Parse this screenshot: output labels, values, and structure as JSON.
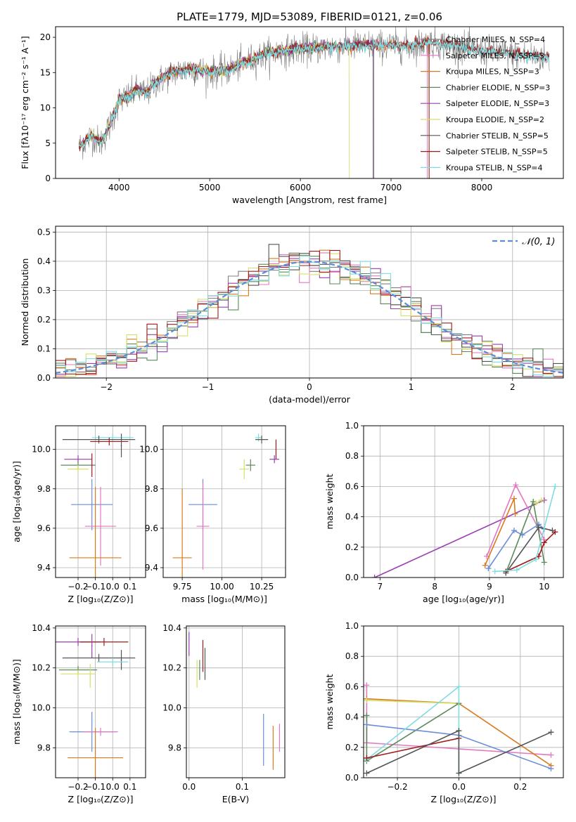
{
  "title": "PLATE=1779, MJD=53089, FIBERID=0121, z=0.06",
  "colors": {
    "chabrier_miles": "#7f7f7f",
    "salpeter_miles": "#e377c2",
    "kroupa_miles": "#d97b1e",
    "chabrier_elodie": "#5a8a5a",
    "salpeter_elodie": "#9a3fb0",
    "kroupa_elodie": "#d4e06a",
    "chabrier_stelib": "#555555",
    "salpeter_stelib": "#a01c1c",
    "kroupa_stelib": "#7fdde0",
    "gaussian": "#5b8dd6",
    "single": "#6a8ed8"
  },
  "chart_data": [
    {
      "id": "spectrum",
      "type": "line",
      "xlabel": "wavelength [Angstrom, rest frame]",
      "ylabel": "Flux [fλ10⁻¹⁷ erg cm⁻² s⁻¹ A⁻¹]",
      "xlim": [
        3300,
        8900
      ],
      "ylim": [
        0,
        21.5
      ],
      "xticks": [
        4000,
        5000,
        6000,
        7000,
        8000
      ],
      "yticks": [
        0,
        5,
        10,
        15,
        20
      ],
      "grid": false,
      "legend_placement": "top-right",
      "legend": [
        {
          "label": "Chabrier MILES, N_SSP=4",
          "color_key": "chabrier_miles"
        },
        {
          "label": "Salpeter MILES, N_SSP=3",
          "color_key": "salpeter_miles"
        },
        {
          "label": "Kroupa MILES, N_SSP=3",
          "color_key": "kroupa_miles"
        },
        {
          "label": "Chabrier ELODIE, N_SSP=3",
          "color_key": "chabrier_elodie"
        },
        {
          "label": "Salpeter ELODIE, N_SSP=3",
          "color_key": "salpeter_elodie"
        },
        {
          "label": "Kroupa ELODIE, N_SSP=2",
          "color_key": "kroupa_elodie"
        },
        {
          "label": "Chabrier STELIB, N_SSP=5",
          "color_key": "chabrier_stelib"
        },
        {
          "label": "Salpeter STELIB, N_SSP=5",
          "color_key": "salpeter_stelib"
        },
        {
          "label": "Kroupa STELIB, N_SSP=4",
          "color_key": "kroupa_stelib"
        }
      ],
      "continuum": [
        [
          3560,
          4.5
        ],
        [
          3700,
          6.0
        ],
        [
          3800,
          5.0
        ],
        [
          3900,
          7.5
        ],
        [
          4000,
          11.0
        ],
        [
          4100,
          11.5
        ],
        [
          4200,
          12.5
        ],
        [
          4300,
          12.0
        ],
        [
          4400,
          13.5
        ],
        [
          4600,
          15.0
        ],
        [
          4800,
          15.5
        ],
        [
          5000,
          15.0
        ],
        [
          5200,
          15.3
        ],
        [
          5400,
          16.5
        ],
        [
          5600,
          17.5
        ],
        [
          5800,
          18.0
        ],
        [
          6000,
          18.3
        ],
        [
          6200,
          18.5
        ],
        [
          6400,
          18.6
        ],
        [
          6600,
          18.8
        ],
        [
          6800,
          18.8
        ],
        [
          7000,
          18.8
        ],
        [
          7200,
          18.7
        ],
        [
          7400,
          19.2
        ],
        [
          7600,
          19.0
        ],
        [
          7800,
          18.5
        ],
        [
          8000,
          18.0
        ],
        [
          8200,
          17.8
        ],
        [
          8400,
          17.5
        ],
        [
          8600,
          17.3
        ],
        [
          8750,
          17.0
        ]
      ]
    },
    {
      "id": "residuals",
      "type": "line",
      "xlabel": "(data-model)/error",
      "ylabel": "Normed distribution",
      "xlim": [
        -2.5,
        2.5
      ],
      "ylim": [
        0,
        0.52
      ],
      "xticks": [
        -2,
        -1,
        0,
        1,
        2
      ],
      "yticks": [
        0.0,
        0.1,
        0.2,
        0.3,
        0.4,
        0.5
      ],
      "grid": true,
      "legend_placement": "top-right",
      "legend_label": "𝒩(0, 1)"
    },
    {
      "id": "z_age",
      "type": "scatter",
      "xlabel": "Z [log₁₀(Z/Z⊙)]",
      "ylabel": "age  [log₁₀(age/yr)]",
      "xlim": [
        -0.33,
        0.19
      ],
      "ylim": [
        9.35,
        10.12
      ],
      "xticks": [
        -0.2,
        -0.1,
        0.0,
        0.1
      ],
      "ytick_values": [
        9.4,
        9.6,
        9.8,
        10.0
      ],
      "grid": true,
      "points": [
        {
          "x": 0.0,
          "y": 10.06,
          "xerr": 0.12,
          "yerr": 0.02,
          "color_key": "kroupa_stelib"
        },
        {
          "x": -0.08,
          "y": 10.05,
          "xerr": 0.21,
          "yerr": 0.02,
          "color_key": "chabrier_stelib"
        },
        {
          "x": -0.02,
          "y": 10.04,
          "xerr": 0.11,
          "yerr": 0.02,
          "color_key": "salpeter_stelib"
        },
        {
          "x": 0.05,
          "y": 10.02,
          "xerr": 0.003,
          "yerr": 0.06,
          "color_key": "chabrier_stelib"
        },
        {
          "x": -0.2,
          "y": 9.95,
          "xerr": 0.08,
          "yerr": 0.02,
          "color_key": "salpeter_elodie"
        },
        {
          "x": -0.2,
          "y": 9.92,
          "xerr": 0.1,
          "yerr": 0.02,
          "color_key": "chabrier_elodie"
        },
        {
          "x": -0.12,
          "y": 9.92,
          "xerr": 0.003,
          "yerr": 0.06,
          "color_key": "salpeter_stelib"
        },
        {
          "x": -0.2,
          "y": 9.9,
          "xerr": 0.06,
          "yerr": 0.02,
          "color_key": "kroupa_elodie"
        },
        {
          "x": -0.12,
          "y": 9.72,
          "xerr": 0.12,
          "yerr": 0.13,
          "color_key": "single"
        },
        {
          "x": -0.07,
          "y": 9.61,
          "xerr": 0.09,
          "yerr": 0.2,
          "color_key": "salpeter_miles"
        },
        {
          "x": -0.1,
          "y": 9.45,
          "xerr": 0.15,
          "yerr": 0.36,
          "color_key": "kroupa_miles"
        }
      ]
    },
    {
      "id": "mass_age",
      "type": "scatter",
      "xlabel": "mass [log₁₀(M/M⊙)]",
      "ylabel": "",
      "xlim": [
        9.63,
        10.4
      ],
      "ylim": [
        9.35,
        10.12
      ],
      "xticks": [
        9.75,
        10.0,
        10.25
      ],
      "ytick_values": [
        9.4,
        9.6,
        9.8,
        10.0
      ],
      "grid": true,
      "points": [
        {
          "x": 10.23,
          "y": 10.06,
          "xerr": 0.02,
          "yerr": 0.02,
          "color_key": "kroupa_stelib"
        },
        {
          "x": 10.25,
          "y": 10.05,
          "xerr": 0.04,
          "yerr": 0.02,
          "color_key": "chabrier_stelib"
        },
        {
          "x": 10.34,
          "y": 10.0,
          "xerr": 0.003,
          "yerr": 0.05,
          "color_key": "salpeter_stelib"
        },
        {
          "x": 10.33,
          "y": 9.95,
          "xerr": 0.03,
          "yerr": 0.02,
          "color_key": "salpeter_elodie"
        },
        {
          "x": 10.18,
          "y": 9.92,
          "xerr": 0.03,
          "yerr": 0.03,
          "color_key": "chabrier_elodie"
        },
        {
          "x": 10.14,
          "y": 9.9,
          "xerr": 0.03,
          "yerr": 0.05,
          "color_key": "kroupa_elodie"
        },
        {
          "x": 9.88,
          "y": 9.72,
          "xerr": 0.09,
          "yerr": 0.13,
          "color_key": "single"
        },
        {
          "x": 9.88,
          "y": 9.61,
          "xerr": 0.04,
          "yerr": 0.22,
          "color_key": "salpeter_miles"
        },
        {
          "x": 9.75,
          "y": 9.45,
          "xerr": 0.06,
          "yerr": 0.35,
          "color_key": "kroupa_miles"
        }
      ]
    },
    {
      "id": "age_weight",
      "type": "line",
      "xlabel": "age  [log₁₀(age/yr)]",
      "ylabel": "mass weight",
      "xlim": [
        6.7,
        10.35
      ],
      "ylim": [
        0,
        1.0
      ],
      "xticks": [
        7,
        8,
        9,
        10
      ],
      "yticks": [
        0.0,
        0.2,
        0.4,
        0.6,
        0.8,
        1.0
      ],
      "grid": true,
      "series": [
        {
          "color_key": "salpeter_elodie",
          "points": [
            [
              6.9,
              0.0
            ],
            [
              10.0,
              0.51
            ]
          ]
        },
        {
          "color_key": "salpeter_miles",
          "points": [
            [
              8.95,
              0.14
            ],
            [
              9.48,
              0.61
            ],
            [
              10.0,
              0.25
            ]
          ]
        },
        {
          "color_key": "kroupa_miles",
          "points": [
            [
              8.92,
              0.08
            ],
            [
              9.45,
              0.52
            ],
            [
              9.47,
              0.42
            ]
          ]
        },
        {
          "color_key": "single",
          "points": [
            [
              8.98,
              0.06
            ],
            [
              9.45,
              0.31
            ],
            [
              9.6,
              0.28
            ],
            [
              9.9,
              0.35
            ],
            [
              10.0,
              0.32
            ]
          ]
        },
        {
          "color_key": "chabrier_elodie",
          "points": [
            [
              9.3,
              0.03
            ],
            [
              9.8,
              0.5
            ],
            [
              10.0,
              0.1
            ]
          ]
        },
        {
          "color_key": "salpeter_stelib",
          "points": [
            [
              9.3,
              0.04
            ],
            [
              9.9,
              0.14
            ],
            [
              10.0,
              0.23
            ],
            [
              10.2,
              0.3
            ]
          ]
        },
        {
          "color_key": "chabrier_stelib",
          "points": [
            [
              9.3,
              0.03
            ],
            [
              9.9,
              0.33
            ],
            [
              10.15,
              0.31
            ]
          ]
        },
        {
          "color_key": "kroupa_stelib",
          "points": [
            [
              9.1,
              0.04
            ],
            [
              9.5,
              0.05
            ],
            [
              9.85,
              0.12
            ],
            [
              10.2,
              0.6
            ]
          ]
        },
        {
          "color_key": "kroupa_elodie",
          "points": [
            [
              9.85,
              0.49
            ],
            [
              9.95,
              0.51
            ]
          ]
        }
      ]
    },
    {
      "id": "z_mass",
      "type": "scatter",
      "xlabel": "Z [log₁₀(Z/Z⊙)]",
      "ylabel": "mass [log₁₀(M/M⊙)]",
      "xlim": [
        -0.33,
        0.19
      ],
      "ylim": [
        9.65,
        10.41
      ],
      "xticks": [
        -0.2,
        -0.1,
        0.0,
        0.1
      ],
      "ytick_values": [
        9.8,
        10.0,
        10.2,
        10.4
      ],
      "grid": true,
      "points": [
        {
          "x": -0.2,
          "y": 10.33,
          "xerr": 0.13,
          "yerr": 0.02,
          "color_key": "salpeter_elodie"
        },
        {
          "x": -0.05,
          "y": 10.33,
          "xerr": 0.14,
          "yerr": 0.02,
          "color_key": "salpeter_stelib"
        },
        {
          "x": -0.12,
          "y": 10.31,
          "xerr": 0.003,
          "yerr": 0.06,
          "color_key": "salpeter_elodie"
        },
        {
          "x": -0.08,
          "y": 10.25,
          "xerr": 0.21,
          "yerr": 0.02,
          "color_key": "chabrier_stelib"
        },
        {
          "x": 0.05,
          "y": 10.24,
          "xerr": 0.003,
          "yerr": 0.05,
          "color_key": "chabrier_stelib"
        },
        {
          "x": 0.0,
          "y": 10.23,
          "xerr": 0.09,
          "yerr": 0.02,
          "color_key": "kroupa_stelib"
        },
        {
          "x": -0.2,
          "y": 10.19,
          "xerr": 0.11,
          "yerr": 0.02,
          "color_key": "chabrier_elodie"
        },
        {
          "x": -0.13,
          "y": 10.16,
          "xerr": 0.003,
          "yerr": 0.06,
          "color_key": "kroupa_elodie"
        },
        {
          "x": -0.2,
          "y": 10.17,
          "xerr": 0.1,
          "yerr": 0.02,
          "color_key": "kroupa_elodie"
        },
        {
          "x": -0.12,
          "y": 9.88,
          "xerr": 0.13,
          "yerr": 0.1,
          "color_key": "single"
        },
        {
          "x": -0.07,
          "y": 9.88,
          "xerr": 0.1,
          "yerr": 0.02,
          "color_key": "salpeter_miles"
        },
        {
          "x": -0.1,
          "y": 9.75,
          "xerr": 0.16,
          "yerr": 0.15,
          "color_key": "kroupa_miles"
        }
      ]
    },
    {
      "id": "ebv_mass",
      "type": "scatter",
      "xlabel": "E(B-V)",
      "ylabel": "",
      "xlim": [
        -0.005,
        0.18
      ],
      "ylim": [
        9.65,
        10.41
      ],
      "xticks": [
        0.0,
        0.1
      ],
      "ytick_values": [
        9.8,
        10.0,
        10.2,
        10.4
      ],
      "grid": true,
      "points": [
        {
          "x": 0.0,
          "y": 10.32,
          "xerr": 0,
          "yerr": 0.06,
          "color_key": "salpeter_elodie"
        },
        {
          "x": 0.015,
          "y": 10.17,
          "xerr": 0,
          "yerr": 0.07,
          "color_key": "kroupa_elodie"
        },
        {
          "x": 0.02,
          "y": 10.19,
          "xerr": 0,
          "yerr": 0.05,
          "color_key": "chabrier_elodie"
        },
        {
          "x": 0.026,
          "y": 10.26,
          "xerr": 0,
          "yerr": 0.08,
          "color_key": "salpeter_stelib"
        },
        {
          "x": 0.03,
          "y": 10.22,
          "xerr": 0,
          "yerr": 0.08,
          "color_key": "chabrier_stelib"
        },
        {
          "x": 0.14,
          "y": 9.84,
          "xerr": 0,
          "yerr": 0.13,
          "color_key": "single"
        },
        {
          "x": 0.158,
          "y": 9.8,
          "xerr": 0,
          "yerr": 0.11,
          "color_key": "kroupa_miles"
        },
        {
          "x": 0.17,
          "y": 9.85,
          "xerr": 0,
          "yerr": 0.07,
          "color_key": "salpeter_miles"
        }
      ]
    },
    {
      "id": "z_weight",
      "type": "line",
      "xlabel": "Z [log₁₀(Z/Z⊙)]",
      "ylabel": "mass weight",
      "xlim": [
        -0.31,
        0.34
      ],
      "ylim": [
        0,
        1.0
      ],
      "xticks": [
        -0.2,
        0.0,
        0.2
      ],
      "yticks": [
        0.0,
        0.2,
        0.4,
        0.6,
        0.8,
        1.0
      ],
      "grid": true,
      "series": [
        {
          "color_key": "salpeter_miles",
          "points": [
            [
              -0.3,
              0.61
            ],
            [
              -0.3,
              0.23
            ],
            [
              0.3,
              0.15
            ]
          ]
        },
        {
          "color_key": "kroupa_miles",
          "points": [
            [
              -0.3,
              0.52
            ],
            [
              0.0,
              0.49
            ],
            [
              0.3,
              0.08
            ]
          ]
        },
        {
          "color_key": "kroupa_elodie",
          "points": [
            [
              -0.3,
              0.51
            ],
            [
              0.0,
              0.49
            ]
          ]
        },
        {
          "color_key": "chabrier_elodie",
          "points": [
            [
              -0.3,
              0.41
            ],
            [
              -0.3,
              0.11
            ],
            [
              0.0,
              0.49
            ]
          ]
        },
        {
          "color_key": "single",
          "points": [
            [
              -0.3,
              0.35
            ],
            [
              0.0,
              0.28
            ],
            [
              0.3,
              0.06
            ]
          ]
        },
        {
          "color_key": "kroupa_stelib",
          "points": [
            [
              -0.3,
              0.12
            ],
            [
              0.0,
              0.6
            ],
            [
              0.0,
              0.03
            ]
          ]
        },
        {
          "color_key": "salpeter_stelib",
          "points": [
            [
              -0.3,
              0.13
            ],
            [
              0.0,
              0.26
            ]
          ]
        },
        {
          "color_key": "chabrier_stelib",
          "points": [
            [
              -0.3,
              0.03
            ],
            [
              0.0,
              0.31
            ],
            [
              0.0,
              0.03
            ],
            [
              0.3,
              0.3
            ]
          ]
        }
      ]
    }
  ]
}
